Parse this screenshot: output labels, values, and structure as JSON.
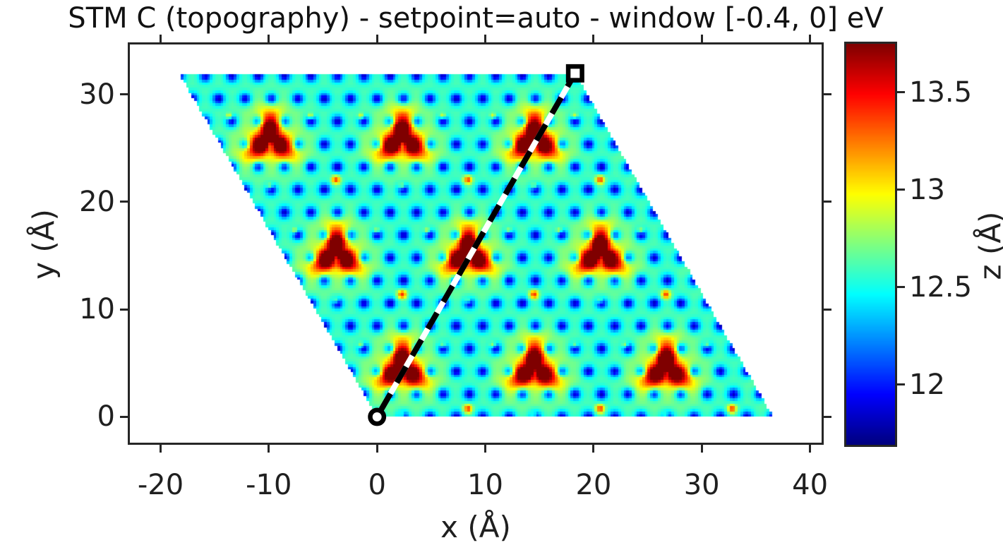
{
  "title": "STM C (topography) - setpoint=auto - window [-0.4, 0] eV",
  "colors": {
    "text": "#1f1f1f",
    "spine": "#262626",
    "marker_fill": "#ffffff",
    "marker_stroke": "#000000",
    "profile_line_white": "#ffffff",
    "profile_line_black": "#000000"
  },
  "chart_data": {
    "type": "heatmap",
    "title": "STM C (topography) - setpoint=auto - window [-0.4, 0] eV",
    "xlabel": "x (Å)",
    "ylabel": "y (Å)",
    "colorbar_label": "z (Å)",
    "colormap": "jet",
    "grid": false,
    "legend": null,
    "xlim": [
      -22.9,
      41.2
    ],
    "ylim": [
      -2.6,
      34.7
    ],
    "x_ticks": [
      -20,
      -10,
      0,
      10,
      20,
      30,
      40
    ],
    "x_tick_labels": [
      "-20",
      "-10",
      "0",
      "10",
      "20",
      "30",
      "40"
    ],
    "y_ticks": [
      0,
      10,
      20,
      30
    ],
    "y_tick_labels": [
      "0",
      "10",
      "20",
      "30"
    ],
    "colorbar_ticks": [
      12,
      12.5,
      13,
      13.5
    ],
    "colorbar_tick_labels": [
      "12",
      "12.5",
      "13",
      "13.5"
    ],
    "z_min": 11.69,
    "z_max": 13.75,
    "background_z": 12.46,
    "domain_parallelogram": {
      "origin": [
        0,
        0
      ],
      "a1": [
        36.6,
        0
      ],
      "a2": [
        -18.3,
        31.95
      ]
    },
    "atomic_lattice": {
      "a": 2.44,
      "hole_depth": 0.64,
      "ring_height": 0.14
    },
    "moire_lattice": {
      "A1": [
        12.2,
        0
      ],
      "A2": [
        -6.1,
        10.65
      ],
      "anchor": [
        2.3,
        4.5
      ]
    },
    "peak_centers": [
      [
        2.3,
        4.5
      ],
      [
        14.5,
        4.5
      ],
      [
        26.7,
        4.5
      ],
      [
        -3.8,
        15.15
      ],
      [
        8.4,
        15.15
      ],
      [
        20.6,
        15.15
      ],
      [
        -9.9,
        25.8
      ],
      [
        2.3,
        25.8
      ],
      [
        14.5,
        25.8
      ]
    ],
    "peak_z": 13.75,
    "peak_height": 1.9,
    "satellite_offset": [
      0,
      6.9
    ],
    "satellite_height": 0.8,
    "speck_offsets": [
      [
        3.77,
        2.17
      ],
      [
        -3.77,
        2.17
      ],
      [
        0,
        -4.35
      ]
    ],
    "speck_height": 0.5,
    "profile_line": {
      "start": [
        0,
        0
      ],
      "end": [
        18.3,
        31.95
      ],
      "start_marker": "circle",
      "end_marker": "square",
      "style": "black-white-dashed"
    }
  }
}
